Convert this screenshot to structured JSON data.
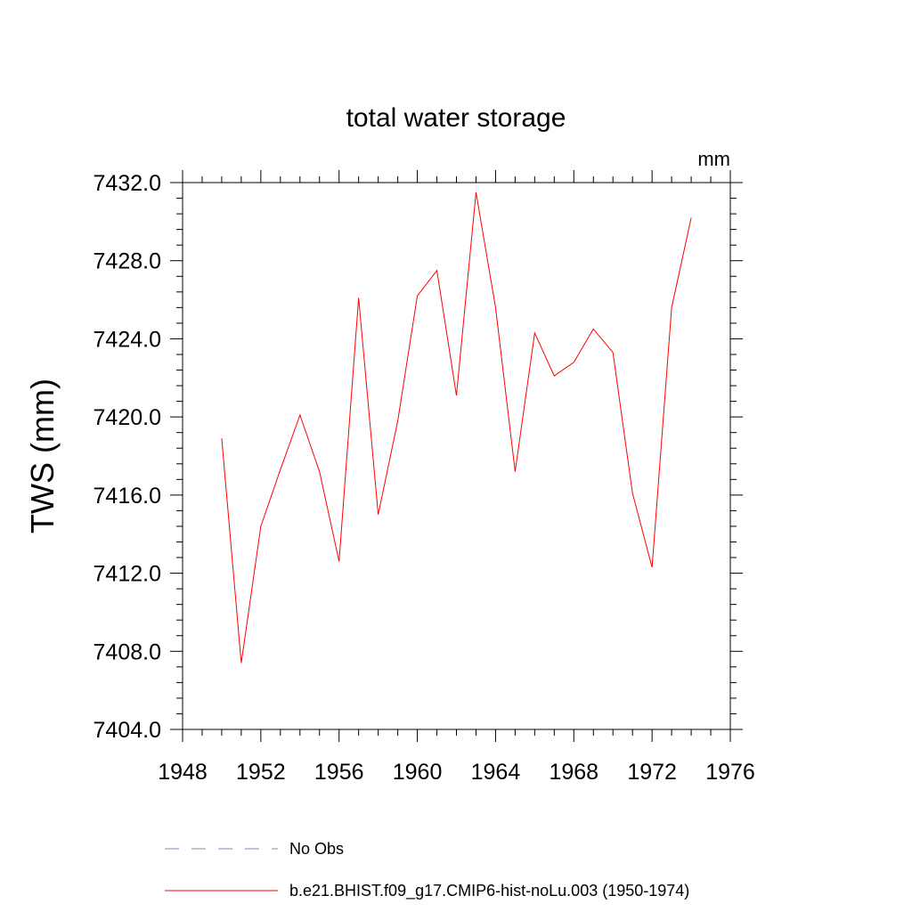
{
  "chart_data": {
    "type": "line",
    "title": "total water storage",
    "units_label": "mm",
    "xlabel": "",
    "ylabel": "TWS  (mm)",
    "xlim": [
      1948,
      1976
    ],
    "ylim": [
      7404.0,
      7432.0
    ],
    "x_ticks": [
      1948,
      1952,
      1956,
      1960,
      1964,
      1968,
      1972,
      1976
    ],
    "x_tick_labels": [
      "1948",
      "1952",
      "1956",
      "1960",
      "1964",
      "1968",
      "1972",
      "1976"
    ],
    "y_ticks": [
      7404.0,
      7408.0,
      7412.0,
      7416.0,
      7420.0,
      7424.0,
      7428.0,
      7432.0
    ],
    "y_tick_labels": [
      "7404.0",
      "7408.0",
      "7412.0",
      "7416.0",
      "7420.0",
      "7424.0",
      "7428.0",
      "7432.0"
    ],
    "grid": false,
    "legend_position": "bottom",
    "series": [
      {
        "name": "b.e21.BHIST.f09_g17.CMIP6-hist-noLu.003 (1950-1974)",
        "color": "#ff0000",
        "dash": "solid",
        "x": [
          1950,
          1951,
          1952,
          1953,
          1954,
          1955,
          1956,
          1957,
          1958,
          1959,
          1960,
          1961,
          1962,
          1963,
          1964,
          1965,
          1966,
          1967,
          1968,
          1969,
          1970,
          1971,
          1972,
          1973,
          1974
        ],
        "values": [
          7418.9,
          7407.4,
          7414.4,
          7417.3,
          7420.1,
          7417.2,
          7412.6,
          7426.1,
          7415.0,
          7419.8,
          7426.2,
          7427.5,
          7421.1,
          7431.5,
          7425.6,
          7417.2,
          7424.3,
          7422.1,
          7422.8,
          7424.5,
          7423.3,
          7416.1,
          7412.3,
          7425.6,
          7430.2
        ]
      }
    ],
    "legend": [
      {
        "label": "No Obs",
        "color": "#8080c0",
        "dash": "dashed"
      },
      {
        "label": "b.e21.BHIST.f09_g17.CMIP6-hist-noLu.003 (1950-1974)",
        "color": "#ff0000",
        "dash": "solid"
      }
    ]
  }
}
